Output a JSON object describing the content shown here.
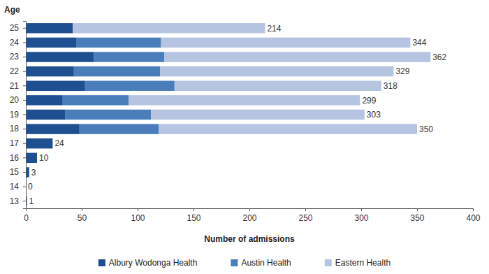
{
  "chart_data": {
    "type": "bar",
    "orientation": "horizontal",
    "stacked": true,
    "x_label": "Number of admissions",
    "y_label": "Age",
    "categories": [
      "13",
      "14",
      "15",
      "16",
      "17",
      "18",
      "19",
      "20",
      "21",
      "22",
      "23",
      "24",
      "25"
    ],
    "series": [
      {
        "name": "Albury Wodonga Health",
        "color": "#1d4f91",
        "values": [
          1,
          0,
          3,
          10,
          24,
          48,
          35,
          33,
          53,
          43,
          61,
          45,
          42
        ]
      },
      {
        "name": "Austin Health",
        "color": "#4a7ebb",
        "values": [
          0,
          0,
          0,
          0,
          0,
          71,
          77,
          59,
          80,
          77,
          63,
          76,
          0
        ]
      },
      {
        "name": "Eastern Health",
        "color": "#b4c4e1",
        "values": [
          0,
          0,
          0,
          0,
          0,
          231,
          191,
          207,
          185,
          209,
          238,
          223,
          172
        ]
      }
    ],
    "totals": [
      1,
      0,
      3,
      10,
      24,
      350,
      303,
      299,
      318,
      329,
      362,
      344,
      214
    ],
    "xlim": [
      0,
      400
    ],
    "xticks": [
      0,
      50,
      100,
      150,
      200,
      250,
      300,
      350,
      400
    ],
    "grid": false,
    "legend": "bottom"
  }
}
